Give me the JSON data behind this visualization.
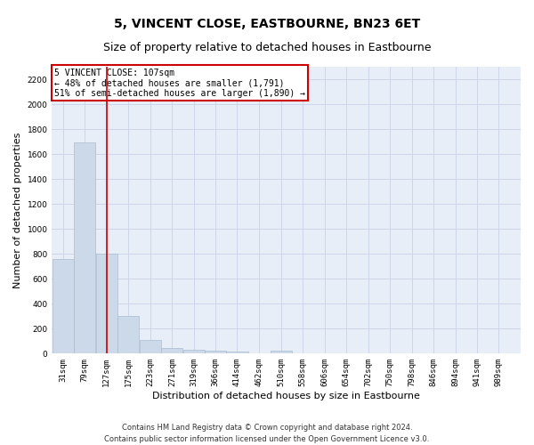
{
  "title": "5, VINCENT CLOSE, EASTBOURNE, BN23 6ET",
  "subtitle": "Size of property relative to detached houses in Eastbourne",
  "xlabel": "Distribution of detached houses by size in Eastbourne",
  "ylabel": "Number of detached properties",
  "footer_line1": "Contains HM Land Registry data © Crown copyright and database right 2024.",
  "footer_line2": "Contains public sector information licensed under the Open Government Licence v3.0.",
  "annotation_line1": "5 VINCENT CLOSE: 107sqm",
  "annotation_line2": "← 48% of detached houses are smaller (1,791)",
  "annotation_line3": "51% of semi-detached houses are larger (1,890) →",
  "property_sqm": 107,
  "bar_color": "#ccd9e8",
  "bar_edge_color": "#aabbd0",
  "vline_color": "#cc0000",
  "categories": [
    "31sqm",
    "79sqm",
    "127sqm",
    "175sqm",
    "223sqm",
    "271sqm",
    "319sqm",
    "366sqm",
    "414sqm",
    "462sqm",
    "510sqm",
    "558sqm",
    "606sqm",
    "654sqm",
    "702sqm",
    "750sqm",
    "798sqm",
    "846sqm",
    "894sqm",
    "941sqm",
    "989sqm"
  ],
  "bin_starts": [
    31,
    79,
    127,
    175,
    223,
    271,
    319,
    366,
    414,
    462,
    510,
    558,
    606,
    654,
    702,
    750,
    798,
    846,
    894,
    941,
    989
  ],
  "bin_width": 48,
  "values": [
    760,
    1690,
    800,
    300,
    110,
    43,
    30,
    22,
    20,
    0,
    22,
    0,
    0,
    0,
    0,
    0,
    0,
    0,
    0,
    0,
    0
  ],
  "ylim": [
    0,
    2300
  ],
  "yticks": [
    0,
    200,
    400,
    600,
    800,
    1000,
    1200,
    1400,
    1600,
    1800,
    2000,
    2200
  ],
  "xlim_left": 7,
  "xlim_right": 1037,
  "grid_color": "#ccd6e8",
  "bg_color": "#e8eef8",
  "annotation_box_facecolor": "#ffffff",
  "annotation_box_edgecolor": "#cc0000",
  "title_fontsize": 10,
  "subtitle_fontsize": 9,
  "ylabel_fontsize": 8,
  "xlabel_fontsize": 8,
  "tick_fontsize": 6.5,
  "annotation_fontsize": 7,
  "footer_fontsize": 6
}
